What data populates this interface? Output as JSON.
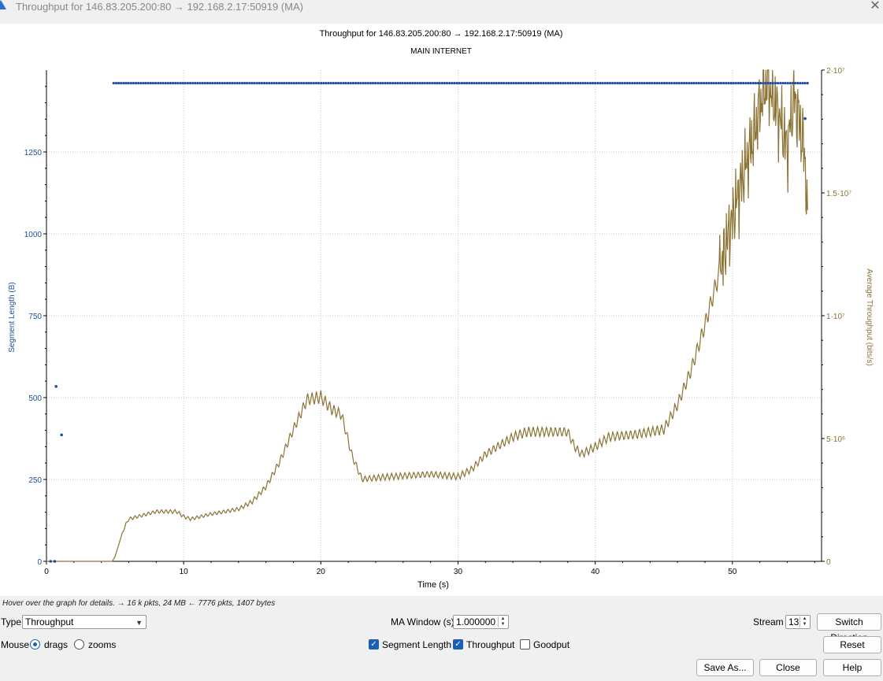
{
  "window": {
    "title": "Throughput for 146.83.205.200:80 → 192.168.2.17:50919 (MA)",
    "close_glyph": "✕"
  },
  "chart_data": {
    "type": "scatter+line",
    "title": "Throughput for 146.83.205.200:80 → 192.168.2.17:50919 (MA)",
    "subtitle": "MAIN INTERNET",
    "xlabel": "Time (s)",
    "ylabel_left": "Segment Length (B)",
    "ylabel_right": "Average Throughput (bits/s)",
    "xlim": [
      0,
      56.5
    ],
    "ylim_left": [
      0,
      1500
    ],
    "ylim_right": [
      0,
      20000000
    ],
    "x_ticks": [
      "0",
      "10",
      "20",
      "30",
      "40",
      "50"
    ],
    "y_left_ticks": [
      "0",
      "250",
      "500",
      "750",
      "1000",
      "1250"
    ],
    "y_right_ticks": [
      "0",
      "5·10⁶",
      "1·10⁷",
      "1.5·10⁷",
      "2·10⁷"
    ],
    "grid": true,
    "segment_series": {
      "name": "Segment Length",
      "color": "#1f4e9a",
      "outliers": [
        [
          0.3,
          0
        ],
        [
          0.6,
          0
        ],
        [
          0.7,
          534
        ],
        [
          1.1,
          386
        ],
        [
          55.3,
          1352
        ]
      ],
      "constant_value": 1460,
      "constant_x_range": [
        4.9,
        55.5
      ]
    },
    "throughput_series": {
      "name": "Throughput",
      "color": "#8b7334",
      "x": [
        0,
        4.8,
        5.0,
        5.5,
        5.8,
        6,
        8,
        9.5,
        10,
        10.5,
        12,
        14,
        15,
        16,
        17,
        18,
        19,
        20,
        20.8,
        21.5,
        22.3,
        23,
        25,
        28,
        30,
        31,
        32,
        34,
        35,
        36,
        38,
        38.5,
        39,
        40,
        41,
        43,
        44,
        45,
        46,
        47,
        48,
        49,
        50,
        51,
        51.6,
        52.2,
        52.5,
        53,
        53.5,
        54,
        54.5,
        55,
        55.3,
        55.5
      ],
      "y": [
        0,
        0,
        200000,
        1100000,
        1500000,
        1700000,
        2000000,
        2000000,
        1800000,
        1700000,
        1900000,
        2100000,
        2400000,
        3000000,
        4000000,
        5300000,
        6500000,
        6600000,
        6100000,
        5900000,
        4200000,
        3300000,
        3400000,
        3500000,
        3400000,
        3700000,
        4300000,
        5000000,
        5200000,
        5200000,
        5200000,
        4600000,
        4300000,
        4600000,
        5000000,
        5100000,
        5200000,
        5300000,
        6300000,
        7700000,
        9500000,
        11500000,
        13800000,
        16000000,
        17200000,
        18800000,
        19300000,
        18600000,
        17700000,
        16600000,
        18700000,
        17300000,
        16200000,
        13200000
      ]
    }
  },
  "hint": "Hover over the graph for details. → 16 k pkts, 24 MB ← 7776 pkts, 1407 bytes",
  "controls": {
    "type_label": "Type",
    "type_value": "Throughput",
    "ma_label": "MA Window (s)",
    "ma_value": "1.000000",
    "stream_label": "Stream",
    "stream_value": "13",
    "switch_direction": "Switch Direction",
    "mouse_label": "Mouse",
    "drags_label": "drags",
    "zooms_label": "zooms",
    "segment_length_label": "Segment Length",
    "throughput_label": "Throughput",
    "goodput_label": "Goodput",
    "reset": "Reset",
    "save_as": "Save As...",
    "close": "Close",
    "help": "Help"
  }
}
